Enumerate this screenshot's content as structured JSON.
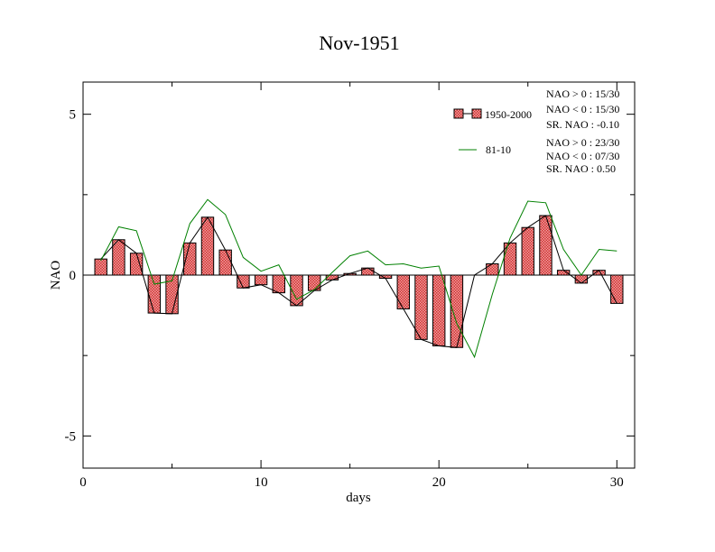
{
  "chart_data": {
    "type": "bar",
    "title": "Nov-1951",
    "xlabel": "days",
    "ylabel": "NAO",
    "xlim": [
      0,
      31
    ],
    "ylim": [
      -6,
      6
    ],
    "x_ticks": [
      0,
      10,
      20,
      30
    ],
    "x_tick_labels": [
      "0",
      "10",
      "20",
      "30"
    ],
    "y_ticks": [
      -5,
      0,
      5
    ],
    "y_tick_labels": [
      "-5",
      "0",
      "5"
    ],
    "grid": false,
    "legend_position": "top-right",
    "x": [
      1,
      2,
      3,
      4,
      5,
      6,
      7,
      8,
      9,
      10,
      11,
      12,
      13,
      14,
      15,
      16,
      17,
      18,
      19,
      20,
      21,
      22,
      23,
      24,
      25,
      26,
      27,
      28,
      29,
      30
    ],
    "series": [
      {
        "name": "1950-2000",
        "kind": "bar-with-line",
        "color": "#e06060",
        "values": [
          0.5,
          1.1,
          0.68,
          -1.18,
          -1.2,
          1.0,
          1.8,
          0.78,
          -0.4,
          -0.3,
          -0.55,
          -0.95,
          -0.48,
          -0.15,
          0.05,
          0.22,
          -0.1,
          -1.05,
          -2.0,
          -2.2,
          -2.25,
          0.0,
          0.35,
          1.0,
          1.48,
          1.85,
          0.15,
          -0.25,
          0.15,
          -0.88
        ]
      },
      {
        "name": "81-10",
        "kind": "line",
        "color": "#008000",
        "values": [
          0.45,
          1.5,
          1.38,
          -0.28,
          -0.18,
          1.6,
          2.35,
          1.88,
          0.55,
          0.12,
          0.32,
          -0.75,
          -0.45,
          0.08,
          0.6,
          0.75,
          0.32,
          0.35,
          0.22,
          0.28,
          -1.5,
          -2.55,
          -0.6,
          1.15,
          2.3,
          2.25,
          0.8,
          0.0,
          0.8,
          0.75
        ]
      }
    ],
    "stats": [
      {
        "line1": "NAO > 0 : 15/30",
        "line2": "NAO < 0 : 15/30",
        "line3": "SR. NAO : -0.10"
      },
      {
        "line1": "NAO > 0 : 23/30",
        "line2": "NAO < 0 : 07/30",
        "line3": "SR. NAO :  0.50"
      }
    ]
  }
}
